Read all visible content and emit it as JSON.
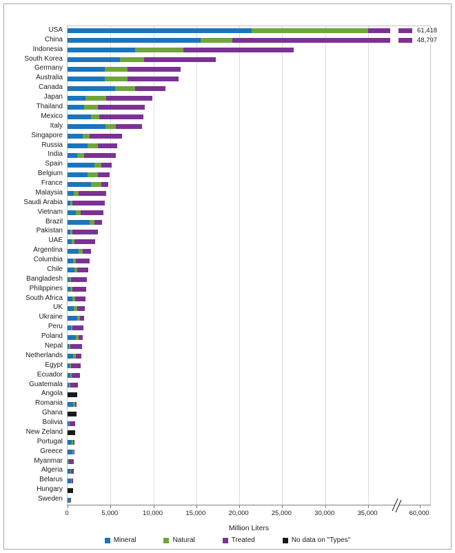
{
  "chart_data": {
    "type": "bar",
    "orientation": "horizontal",
    "stacked": true,
    "title": "",
    "xlabel": "Million Liters",
    "axis_break": true,
    "axis_break_between": [
      38000,
      60000
    ],
    "x_ticks": [
      {
        "value": 0,
        "label": "0"
      },
      {
        "value": 5000,
        "label": "5,000"
      },
      {
        "value": 10000,
        "label": "10,000"
      },
      {
        "value": 15000,
        "label": "15,000"
      },
      {
        "value": 20000,
        "label": "20,000"
      },
      {
        "value": 25000,
        "label": "25,000"
      },
      {
        "value": 30000,
        "label": "30,000"
      },
      {
        "value": 35000,
        "label": "35,000"
      },
      {
        "value": 60000,
        "label": "60,000"
      }
    ],
    "colors": {
      "mineral": "#1B75BC",
      "natural": "#6FA53C",
      "treated": "#7B3294",
      "nodata": "#1A1A1A"
    },
    "legend": [
      {
        "key": "mineral",
        "label": "Mineral",
        "color": "#1B75BC"
      },
      {
        "key": "natural",
        "label": "Natural",
        "color": "#6FA53C"
      },
      {
        "key": "treated",
        "label": "Treated",
        "color": "#7B3294"
      },
      {
        "key": "nodata",
        "label": "No data on \"Types\"",
        "color": "#1A1A1A"
      }
    ],
    "countries": [
      {
        "name": "USA",
        "mineral": 21400,
        "natural": 13600,
        "treated": 26418,
        "nodata": 0,
        "total": 61418,
        "annotation": "61,418"
      },
      {
        "name": "China",
        "mineral": 15500,
        "natural": 3700,
        "treated": 29597,
        "nodata": 0,
        "total": 48797,
        "annotation": "48,797"
      },
      {
        "name": "Indonesia",
        "mineral": 7900,
        "natural": 5600,
        "treated": 12800,
        "nodata": 0,
        "total": 26300
      },
      {
        "name": "South Korea",
        "mineral": 6100,
        "natural": 2800,
        "treated": 8400,
        "nodata": 0,
        "total": 17300
      },
      {
        "name": "Germany",
        "mineral": 4300,
        "natural": 2700,
        "treated": 6200,
        "nodata": 0,
        "total": 13200
      },
      {
        "name": "Australia",
        "mineral": 4300,
        "natural": 2700,
        "treated": 5900,
        "nodata": 0,
        "total": 12900
      },
      {
        "name": "Canada",
        "mineral": 5500,
        "natural": 2400,
        "treated": 3500,
        "nodata": 0,
        "total": 11400
      },
      {
        "name": "Japan",
        "mineral": 2100,
        "natural": 2400,
        "treated": 5400,
        "nodata": 0,
        "total": 9900
      },
      {
        "name": "Thailand",
        "mineral": 1900,
        "natural": 1600,
        "treated": 5500,
        "nodata": 0,
        "total": 9000
      },
      {
        "name": "Mexico",
        "mineral": 2700,
        "natural": 1000,
        "treated": 5150,
        "nodata": 0,
        "total": 8850
      },
      {
        "name": "Italy",
        "mineral": 4400,
        "natural": 1200,
        "treated": 3100,
        "nodata": 0,
        "total": 8700
      },
      {
        "name": "Singapore",
        "mineral": 1800,
        "natural": 800,
        "treated": 3750,
        "nodata": 0,
        "total": 6350
      },
      {
        "name": "Russia",
        "mineral": 2300,
        "natural": 1200,
        "treated": 2300,
        "nodata": 0,
        "total": 5800
      },
      {
        "name": "India",
        "mineral": 1100,
        "natural": 800,
        "treated": 3700,
        "nodata": 0,
        "total": 5600
      },
      {
        "name": "Spain",
        "mineral": 3100,
        "natural": 800,
        "treated": 1200,
        "nodata": 0,
        "total": 5100
      },
      {
        "name": "Belgium",
        "mineral": 2300,
        "natural": 1200,
        "treated": 1400,
        "nodata": 0,
        "total": 4900
      },
      {
        "name": "France",
        "mineral": 2700,
        "natural": 1200,
        "treated": 850,
        "nodata": 0,
        "total": 4750
      },
      {
        "name": "Malaysia",
        "mineral": 700,
        "natural": 550,
        "treated": 3250,
        "nodata": 0,
        "total": 4500
      },
      {
        "name": "Saudi Arabia",
        "mineral": 300,
        "natural": 250,
        "treated": 3800,
        "nodata": 0,
        "total": 4350
      },
      {
        "name": "Vietnam",
        "mineral": 950,
        "natural": 550,
        "treated": 2700,
        "nodata": 0,
        "total": 4200
      },
      {
        "name": "Brazil",
        "mineral": 2550,
        "natural": 550,
        "treated": 900,
        "nodata": 0,
        "total": 4000
      },
      {
        "name": "Pakistan",
        "mineral": 300,
        "natural": 300,
        "treated": 2900,
        "nodata": 0,
        "total": 3500
      },
      {
        "name": "UAE",
        "mineral": 480,
        "natural": 300,
        "treated": 2420,
        "nodata": 0,
        "total": 3200
      },
      {
        "name": "Argentina",
        "mineral": 1300,
        "natural": 480,
        "treated": 920,
        "nodata": 0,
        "total": 2700
      },
      {
        "name": "Columbia",
        "mineral": 650,
        "natural": 320,
        "treated": 1580,
        "nodata": 0,
        "total": 2550
      },
      {
        "name": "Chile",
        "mineral": 800,
        "natural": 320,
        "treated": 1280,
        "nodata": 0,
        "total": 2400
      },
      {
        "name": "Bangladesh",
        "mineral": 240,
        "natural": 160,
        "treated": 1850,
        "nodata": 0,
        "total": 2250
      },
      {
        "name": "Philippines",
        "mineral": 320,
        "natural": 240,
        "treated": 1640,
        "nodata": 0,
        "total": 2200
      },
      {
        "name": "South Africa",
        "mineral": 560,
        "natural": 320,
        "treated": 1220,
        "nodata": 0,
        "total": 2100
      },
      {
        "name": "UK",
        "mineral": 720,
        "natural": 400,
        "treated": 880,
        "nodata": 0,
        "total": 2000
      },
      {
        "name": "Ukraine",
        "mineral": 1100,
        "natural": 320,
        "treated": 530,
        "nodata": 0,
        "total": 1950
      },
      {
        "name": "Peru",
        "mineral": 400,
        "natural": 160,
        "treated": 1290,
        "nodata": 0,
        "total": 1850
      },
      {
        "name": "Poland",
        "mineral": 950,
        "natural": 320,
        "treated": 530,
        "nodata": 0,
        "total": 1800
      },
      {
        "name": "Nepal",
        "mineral": 160,
        "natural": 160,
        "treated": 1380,
        "nodata": 0,
        "total": 1700
      },
      {
        "name": "Netherlands",
        "mineral": 640,
        "natural": 320,
        "treated": 640,
        "nodata": 0,
        "total": 1600
      },
      {
        "name": "Egypt",
        "mineral": 240,
        "natural": 160,
        "treated": 1150,
        "nodata": 0,
        "total": 1550
      },
      {
        "name": "Ecuador",
        "mineral": 320,
        "natural": 160,
        "treated": 970,
        "nodata": 0,
        "total": 1450
      },
      {
        "name": "Guatemala",
        "mineral": 160,
        "natural": 160,
        "treated": 880,
        "nodata": 0,
        "total": 1200
      },
      {
        "name": "Angola",
        "mineral": 0,
        "natural": 0,
        "treated": 0,
        "nodata": 1150,
        "total": 1150
      },
      {
        "name": "Romania",
        "mineral": 650,
        "natural": 240,
        "treated": 160,
        "nodata": 0,
        "total": 1050
      },
      {
        "name": "Ghana",
        "mineral": 0,
        "natural": 0,
        "treated": 0,
        "nodata": 1050,
        "total": 1050
      },
      {
        "name": "Bolivia",
        "mineral": 160,
        "natural": 80,
        "treated": 660,
        "nodata": 0,
        "total": 900
      },
      {
        "name": "New Zeland",
        "mineral": 0,
        "natural": 0,
        "treated": 0,
        "nodata": 900,
        "total": 900
      },
      {
        "name": "Portugal",
        "mineral": 480,
        "natural": 160,
        "treated": 160,
        "nodata": 0,
        "total": 800
      },
      {
        "name": "Greece",
        "mineral": 560,
        "natural": 160,
        "treated": 80,
        "nodata": 0,
        "total": 800
      },
      {
        "name": "Myanmar",
        "mineral": 80,
        "natural": 80,
        "treated": 590,
        "nodata": 0,
        "total": 750
      },
      {
        "name": "Algeria",
        "mineral": 320,
        "natural": 80,
        "treated": 300,
        "nodata": 0,
        "total": 700
      },
      {
        "name": "Belarus",
        "mineral": 400,
        "natural": 80,
        "treated": 170,
        "nodata": 0,
        "total": 650
      },
      {
        "name": "Hungary",
        "mineral": 0,
        "natural": 0,
        "treated": 0,
        "nodata": 650,
        "total": 650
      },
      {
        "name": "Sweden",
        "mineral": 240,
        "natural": 80,
        "treated": 80,
        "nodata": 0,
        "total": 400
      }
    ]
  }
}
